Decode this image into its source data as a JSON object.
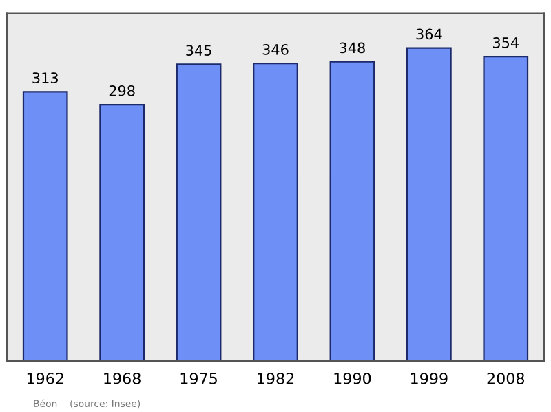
{
  "chart_data": {
    "type": "bar",
    "categories": [
      "1962",
      "1968",
      "1975",
      "1982",
      "1990",
      "1999",
      "2008"
    ],
    "values": [
      313,
      298,
      345,
      346,
      348,
      364,
      354
    ],
    "color": "#6e8ff5",
    "data_labels": true,
    "grid": false,
    "annotations": [
      "Béon    (source: Insee)"
    ]
  }
}
